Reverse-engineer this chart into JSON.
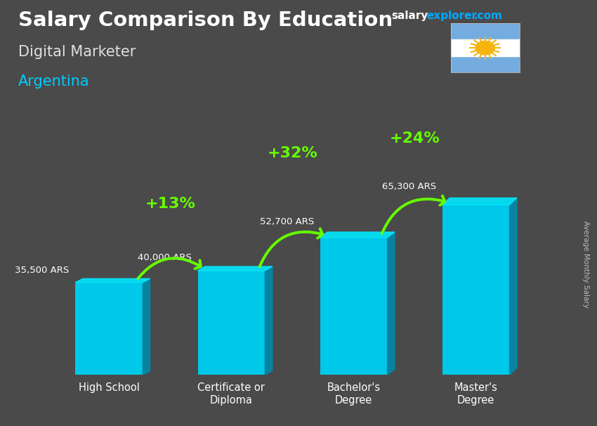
{
  "title": "Salary Comparison By Education",
  "subtitle": "Digital Marketer",
  "country": "Argentina",
  "ylabel": "Average Monthly Salary",
  "categories": [
    "High School",
    "Certificate or\nDiploma",
    "Bachelor's\nDegree",
    "Master's\nDegree"
  ],
  "values": [
    35500,
    40000,
    52700,
    65300
  ],
  "labels": [
    "35,500 ARS",
    "40,000 ARS",
    "52,700 ARS",
    "65,300 ARS"
  ],
  "pct_labels": [
    "+13%",
    "+32%",
    "+24%"
  ],
  "bar_color_main": "#00c8e8",
  "bar_color_left": "#00b0d0",
  "bar_color_right": "#008aaa",
  "bar_color_top": "#00e8ff",
  "background_color": "#3a3a3a",
  "title_color": "#ffffff",
  "subtitle_color": "#e0e0e0",
  "country_color": "#00ccff",
  "label_color": "#ffffff",
  "pct_color": "#66ff00",
  "arrow_color": "#66ff00",
  "site_salary_color": "#ffffff",
  "site_explorer_color": "#00aaff",
  "site_com_color": "#00aaff",
  "ylim": [
    0,
    85000
  ],
  "bar_width": 0.55
}
